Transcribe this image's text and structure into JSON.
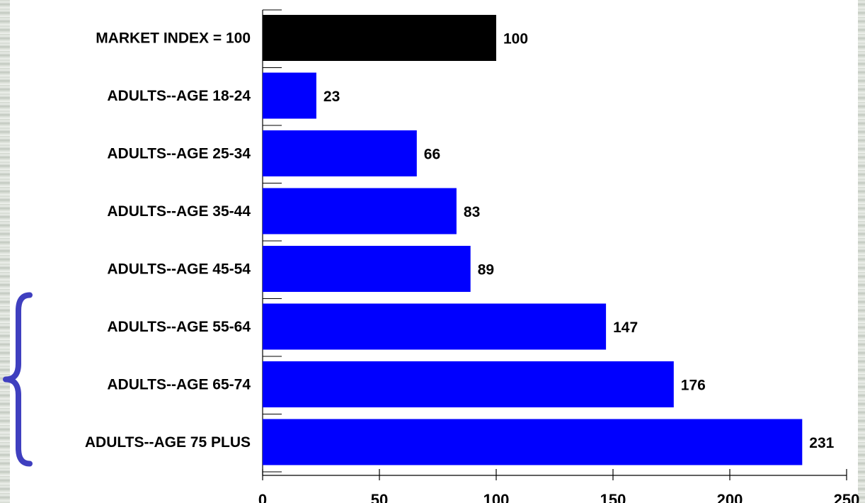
{
  "chart_data": {
    "type": "bar",
    "orientation": "horizontal",
    "categories": [
      "MARKET INDEX = 100",
      "ADULTS--AGE 18-24",
      "ADULTS--AGE 25-34",
      "ADULTS--AGE 35-44",
      "ADULTS--AGE 45-54",
      "ADULTS--AGE 55-64",
      "ADULTS--AGE 65-74",
      "ADULTS--AGE 75 PLUS"
    ],
    "values": [
      100,
      23,
      66,
      83,
      89,
      147,
      176,
      231
    ],
    "bar_colors": [
      "#000000",
      "#0000ff",
      "#0000ff",
      "#0000ff",
      "#0000ff",
      "#0000ff",
      "#0000ff",
      "#0000ff"
    ],
    "xlim": [
      0,
      250
    ],
    "xticks": [
      0,
      50,
      100,
      150,
      200,
      250
    ],
    "title": "",
    "xlabel": "",
    "ylabel": "",
    "grid": false,
    "legend": "none",
    "bracket": {
      "color": "#3f3fbf",
      "spans": [
        "ADULTS--AGE 55-64",
        "ADULTS--AGE 75 PLUS"
      ]
    }
  }
}
